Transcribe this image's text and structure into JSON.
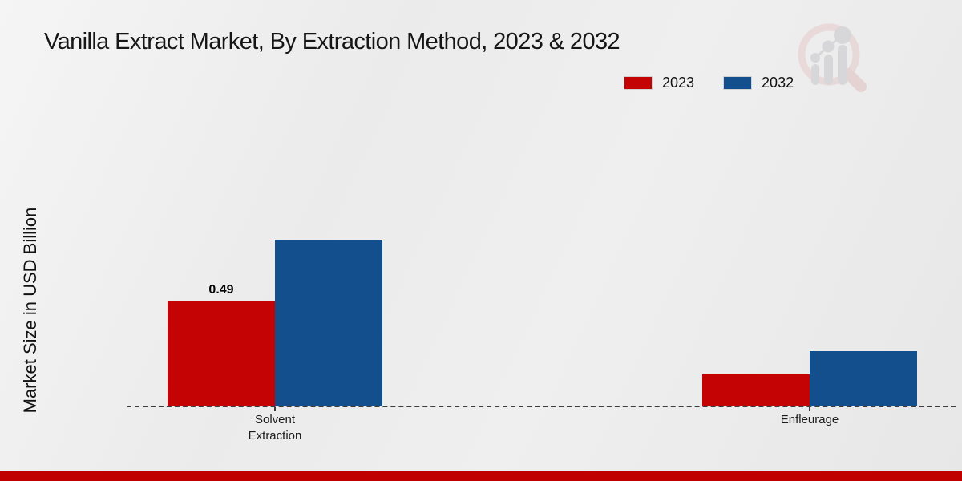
{
  "chart_data": {
    "type": "bar",
    "title": "Vanilla Extract Market, By Extraction Method, 2023 & 2032",
    "ylabel": "Market Size in USD Billion",
    "xlabel": "",
    "categories": [
      "Solvent Extraction",
      "Enfleurage"
    ],
    "series": [
      {
        "name": "2023",
        "color": "#c40404",
        "values": [
          0.49,
          0.15
        ],
        "data_labels": [
          "0.49",
          ""
        ]
      },
      {
        "name": "2032",
        "color": "#124f8c",
        "values": [
          0.78,
          0.26
        ],
        "data_labels": [
          "",
          ""
        ]
      }
    ],
    "ylim": [
      0,
      0.9
    ],
    "grid": false,
    "legend_position": "top-right",
    "baseline_style": "dashed",
    "y_axis_ticks_visible": false
  },
  "watermark": {
    "icon": "magnifier-bar-chart-logo",
    "ring_color": "#e6caca",
    "bar_color": "#c6c6ca"
  },
  "footer": {
    "accent_color": "#c00000"
  }
}
